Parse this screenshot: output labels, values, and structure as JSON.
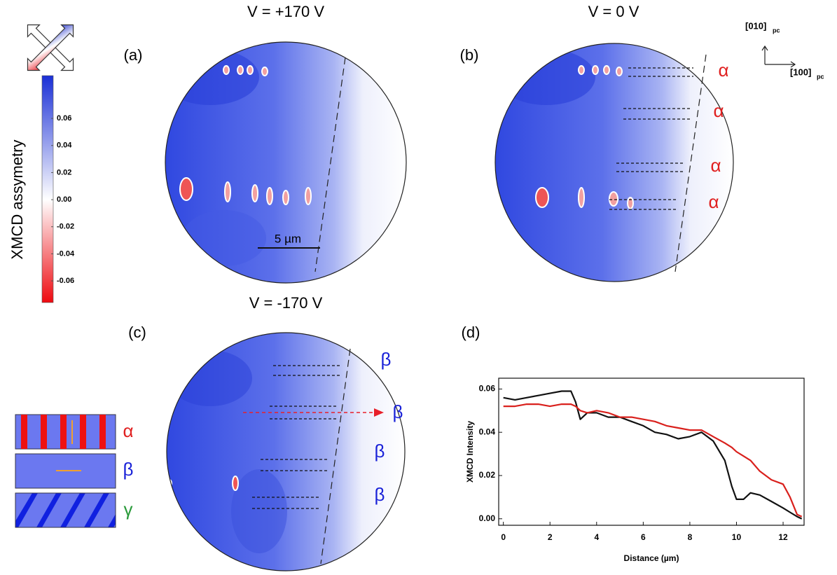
{
  "colorbar": {
    "label": "XMCD assymetry",
    "lim": [
      -0.076,
      0.0916
    ],
    "ticks": [
      0.06,
      0.04,
      0.02,
      {
        "value": 0,
        "label": "0.00"
      },
      -0.02,
      -0.04,
      -0.06
    ]
  },
  "axes_key": {
    "y": "[010]",
    "y_sub": "pc",
    "x": "[100]",
    "x_sub": "pc"
  },
  "panels": [
    {
      "label": "(a)",
      "title": "V =  +170 V",
      "scale_bar": "5 µm"
    },
    {
      "label": "(b)",
      "title": "V =  0 V",
      "domains": [
        "α",
        "α",
        "α",
        "α"
      ]
    },
    {
      "label": "(c)",
      "title": "V =  -170 V",
      "domains": [
        "β",
        "β",
        "β",
        "β"
      ]
    }
  ],
  "legend_domains": [
    "α",
    "β",
    "γ"
  ],
  "chart_data": {
    "type": "line",
    "label": "(d)",
    "xlabel": "Distance (µm)",
    "ylabel": "XMCD Intensity",
    "x": [
      0,
      0.5,
      1,
      1.5,
      2,
      2.5,
      2.9,
      3.1,
      3.3,
      3.6,
      4,
      4.5,
      5,
      5.5,
      6,
      6.5,
      7,
      7.5,
      8,
      8.5,
      9,
      9.5,
      9.8,
      10,
      10.3,
      10.6,
      11,
      11.5,
      12,
      12.3,
      12.6,
      12.8
    ],
    "series": [
      {
        "color": "#111111",
        "values": [
          0.056,
          0.055,
          0.056,
          0.057,
          0.058,
          0.059,
          0.059,
          0.054,
          0.046,
          0.049,
          0.049,
          0.047,
          0.047,
          0.045,
          0.043,
          0.04,
          0.039,
          0.037,
          0.038,
          0.04,
          0.036,
          0.027,
          0.015,
          0.009,
          0.009,
          0.012,
          0.011,
          0.008,
          0.005,
          0.003,
          0.001,
          0.0
        ]
      },
      {
        "color": "#d9201c",
        "values": [
          0.052,
          0.052,
          0.053,
          0.053,
          0.052,
          0.053,
          0.053,
          0.052,
          0.05,
          0.049,
          0.05,
          0.049,
          0.047,
          0.047,
          0.046,
          0.045,
          0.043,
          0.042,
          0.041,
          0.041,
          0.038,
          0.035,
          0.033,
          0.031,
          0.029,
          0.027,
          0.022,
          0.018,
          0.016,
          0.01,
          0.002,
          0.001
        ]
      }
    ],
    "xlim": [
      -0.2,
      12.9
    ],
    "ylim": [
      -0.003,
      0.065
    ],
    "xticks": [
      0,
      2,
      4,
      6,
      8,
      10,
      12
    ],
    "yticks": [
      {
        "value": 0,
        "label": "0.00"
      },
      0.02,
      0.04,
      0.06
    ]
  }
}
